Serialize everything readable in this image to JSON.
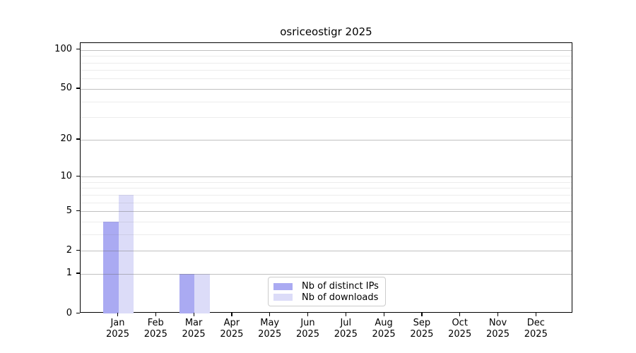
{
  "title": "osriceostigr 2025",
  "colors": {
    "distinct_ips_bar": "#aaaaf2",
    "downloads_bar": "#dcdcf8",
    "grid_major": "rgba(105,105,105,0.42)",
    "grid_minor": "rgba(105,105,105,0.13)",
    "spine": "#000000",
    "legend_border": "#cccccc"
  },
  "chart_data": {
    "type": "bar",
    "title": "osriceostigr 2025",
    "categories": [
      "Jan 2025",
      "Feb 2025",
      "Mar 2025",
      "Apr 2025",
      "May 2025",
      "Jun 2025",
      "Jul 2025",
      "Aug 2025",
      "Sep 2025",
      "Oct 2025",
      "Nov 2025",
      "Dec 2025"
    ],
    "series": [
      {
        "name": "Nb of distinct IPs",
        "color": "#aaaaf2",
        "values": [
          4,
          0,
          1,
          0,
          0,
          0,
          0,
          0,
          0,
          0,
          0,
          0
        ]
      },
      {
        "name": "Nb of downloads",
        "color": "#dcdcf8",
        "values": [
          7,
          0,
          1,
          0,
          0,
          0,
          0,
          0,
          0,
          0,
          0,
          0
        ]
      }
    ],
    "xlabel": "",
    "ylabel": "",
    "yscale": "log1p",
    "ylim": [
      0,
      113
    ],
    "yticks": [
      100,
      50,
      20,
      10,
      5,
      2,
      1,
      0
    ],
    "yticks_minor": [
      90,
      80,
      70,
      60,
      40,
      30,
      9,
      8,
      7,
      6,
      4,
      3
    ],
    "grid": "both",
    "legend_position": "lower-center-inside"
  }
}
